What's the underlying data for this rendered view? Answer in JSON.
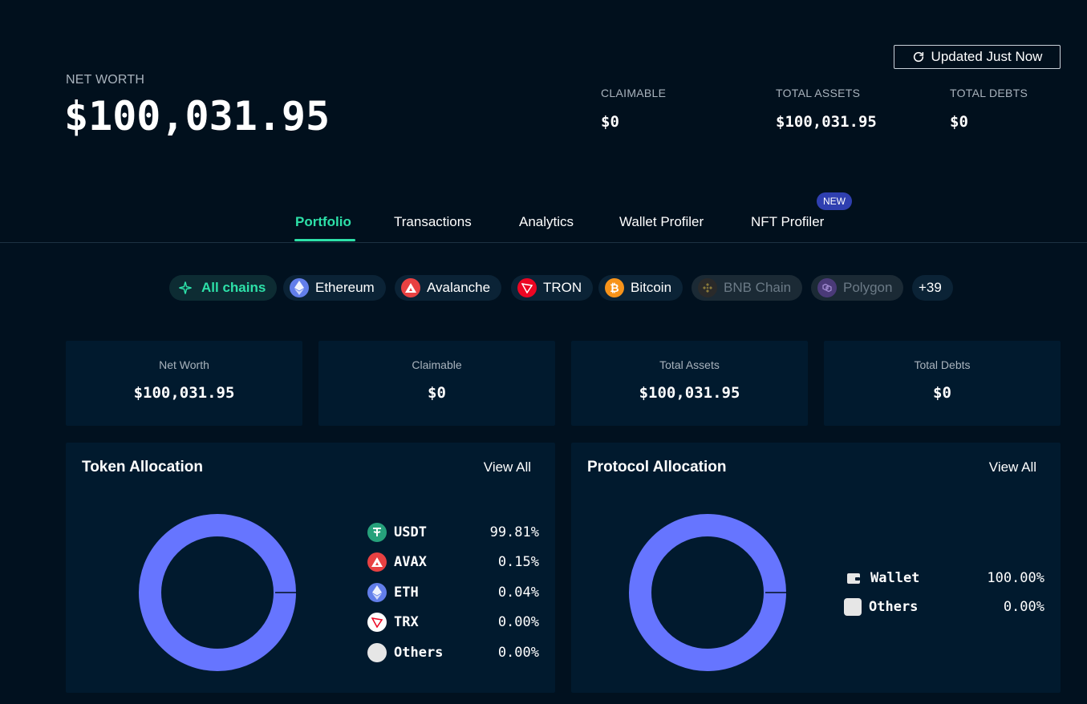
{
  "header": {
    "net_worth_label": "NET WORTH",
    "net_worth_value": "$100,031.95",
    "updated_label": "Updated Just Now",
    "stats": [
      {
        "label": "CLAIMABLE",
        "value": "$0"
      },
      {
        "label": "TOTAL ASSETS",
        "value": "$100,031.95"
      },
      {
        "label": "TOTAL DEBTS",
        "value": "$0"
      }
    ]
  },
  "tabs": [
    {
      "label": "Portfolio",
      "active": true
    },
    {
      "label": "Transactions"
    },
    {
      "label": "Analytics"
    },
    {
      "label": "Wallet Profiler"
    },
    {
      "label": "NFT Profiler",
      "badge": "NEW"
    }
  ],
  "chains": [
    {
      "label": "All chains",
      "icon": "sparkle-icon",
      "active": true
    },
    {
      "label": "Ethereum",
      "icon": "ethereum-icon"
    },
    {
      "label": "Avalanche",
      "icon": "avalanche-icon"
    },
    {
      "label": "TRON",
      "icon": "tron-icon"
    },
    {
      "label": "Bitcoin",
      "icon": "bitcoin-icon"
    },
    {
      "label": "BNB Chain",
      "icon": "bnb-icon",
      "disabled": true
    },
    {
      "label": "Polygon",
      "icon": "polygon-icon",
      "disabled": true
    },
    {
      "label": "+39"
    }
  ],
  "summary": [
    {
      "label": "Net Worth",
      "value": "$100,031.95"
    },
    {
      "label": "Claimable",
      "value": "$0"
    },
    {
      "label": "Total Assets",
      "value": "$100,031.95"
    },
    {
      "label": "Total Debts",
      "value": "$0"
    }
  ],
  "token_allocation": {
    "title": "Token Allocation",
    "view_all": "View All",
    "color": "#6675ff",
    "items": [
      {
        "name": "USDT",
        "percent": "99.81%",
        "icon": "usdt-icon"
      },
      {
        "name": "AVAX",
        "percent": "0.15%",
        "icon": "avalanche-icon"
      },
      {
        "name": "ETH",
        "percent": "0.04%",
        "icon": "ethereum-icon"
      },
      {
        "name": "TRX",
        "percent": "0.00%",
        "icon": "tron-icon"
      },
      {
        "name": "Others",
        "percent": "0.00%",
        "icon": "others-icon"
      }
    ]
  },
  "protocol_allocation": {
    "title": "Protocol Allocation",
    "view_all": "View All",
    "color": "#6675ff",
    "items": [
      {
        "name": "Wallet",
        "percent": "100.00%",
        "icon": "wallet-icon"
      },
      {
        "name": "Others",
        "percent": "0.00%",
        "icon": "others-icon"
      }
    ]
  }
}
